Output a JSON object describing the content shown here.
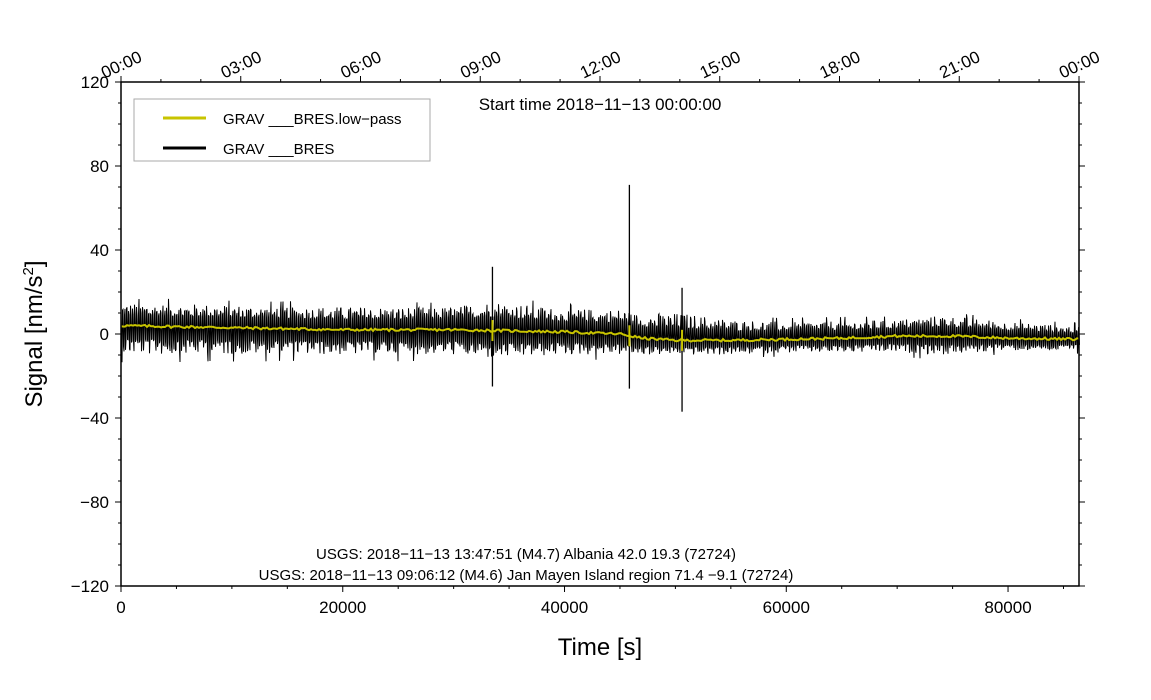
{
  "chart_data": {
    "type": "line",
    "title": "",
    "xlabel": "Time [s]",
    "ylabel_main": "Signal [nm/s",
    "ylabel_sup": "2",
    "ylabel_tail": "]",
    "xlim": [
      0,
      86400
    ],
    "ylim": [
      -120,
      120
    ],
    "x_ticks": [
      0,
      20000,
      40000,
      60000,
      80000
    ],
    "x_tick_labels": [
      "0",
      "20000",
      "40000",
      "60000",
      "80000"
    ],
    "y_ticks": [
      120,
      80,
      40,
      0,
      -40,
      -80,
      -120
    ],
    "y_tick_labels": [
      "120",
      "80",
      "40",
      "0",
      "−40",
      "−80",
      "−120"
    ],
    "top_ticks": [
      0,
      10800,
      21600,
      32400,
      43200,
      54000,
      64800,
      75600,
      86400
    ],
    "top_tick_labels": [
      "00:00",
      "03:00",
      "06:00",
      "09:00",
      "12:00",
      "15:00",
      "18:00",
      "21:00",
      "00:00"
    ],
    "start_time": "Start time 2018−11−13 00:00:00",
    "annotations": [
      "USGS: 2018−11−13 13:47:51 (M4.7) Albania 42.0 19.3 (72724)",
      "USGS: 2018−11−13 09:06:12 (M4.6) Jan Mayen Island region 71.4 −9.1 (72724)"
    ],
    "legend_position": "top-left",
    "series": [
      {
        "name": "GRAV ___BRES.low−pass",
        "color": "#c8c400",
        "x": [
          0,
          5000,
          10000,
          15000,
          20000,
          25000,
          30000,
          35000,
          40000,
          45000,
          47000,
          50000,
          55000,
          60000,
          65000,
          70000,
          75000,
          80000,
          86400
        ],
        "y": [
          4,
          3.5,
          3,
          2.5,
          2,
          2,
          2,
          1.5,
          1,
          0,
          -2,
          -3,
          -3,
          -2.5,
          -2,
          -1,
          -1,
          -2,
          -2.5
        ]
      },
      {
        "name": "GRAV ___BRES",
        "color": "#000000",
        "envelope_x": [
          0,
          10000,
          20000,
          30000,
          33500,
          40000,
          45700,
          46000,
          50500,
          55000,
          60000,
          70000,
          74000,
          80000,
          86400
        ],
        "envelope_upper": [
          15,
          14,
          13,
          13,
          16,
          12,
          12,
          10,
          10,
          7,
          6,
          7,
          9,
          6,
          4
        ],
        "envelope_lower": [
          -10,
          -10,
          -10,
          -10,
          -12,
          -10,
          -10,
          -10,
          -10,
          -10,
          -9,
          -9,
          -10,
          -8,
          -8
        ],
        "spikes": [
          {
            "x": 33500,
            "y_max": 32,
            "y_min": -25
          },
          {
            "x": 45850,
            "y_max": 71,
            "y_min": -26
          },
          {
            "x": 50600,
            "y_max": 22,
            "y_min": -37
          }
        ]
      }
    ]
  }
}
